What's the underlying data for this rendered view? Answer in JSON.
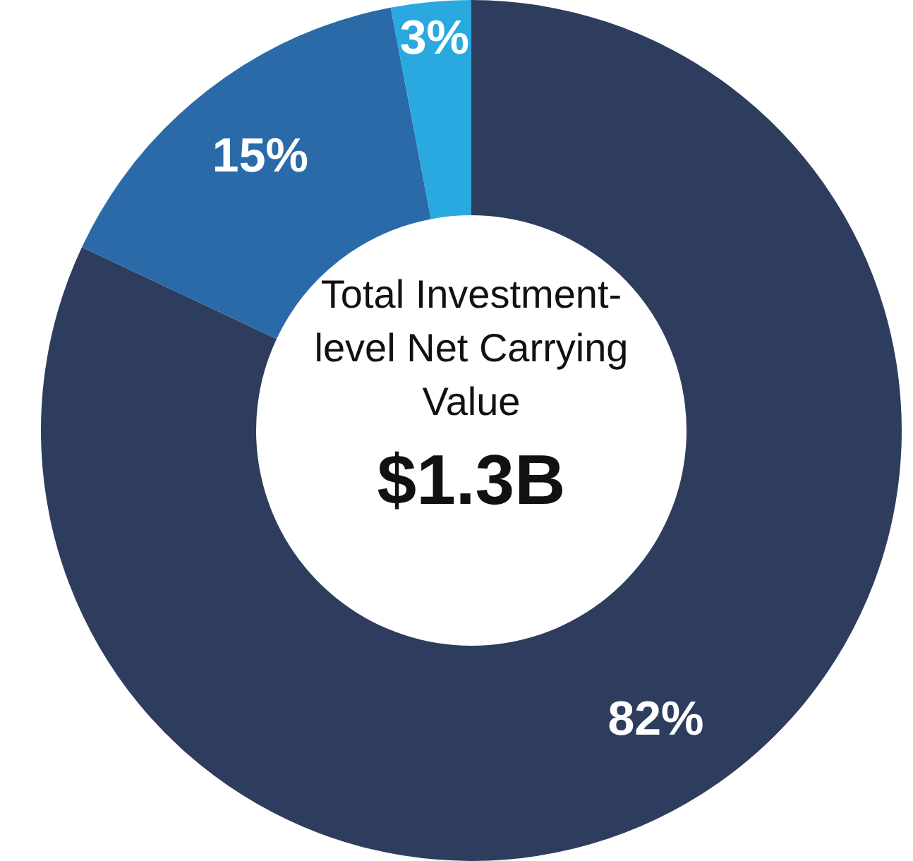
{
  "chart_data": {
    "type": "donut",
    "categories": [
      null,
      null,
      null
    ],
    "values": [
      82,
      15,
      3
    ],
    "colors": [
      "#2e3d5e",
      "#2b6aa8",
      "#29a9e0"
    ],
    "value_labels": [
      "82%",
      "15%",
      "3%"
    ],
    "annotations": [
      "Total Investment-level Net Carrying Value",
      "$1.3B"
    ],
    "legend": false
  }
}
